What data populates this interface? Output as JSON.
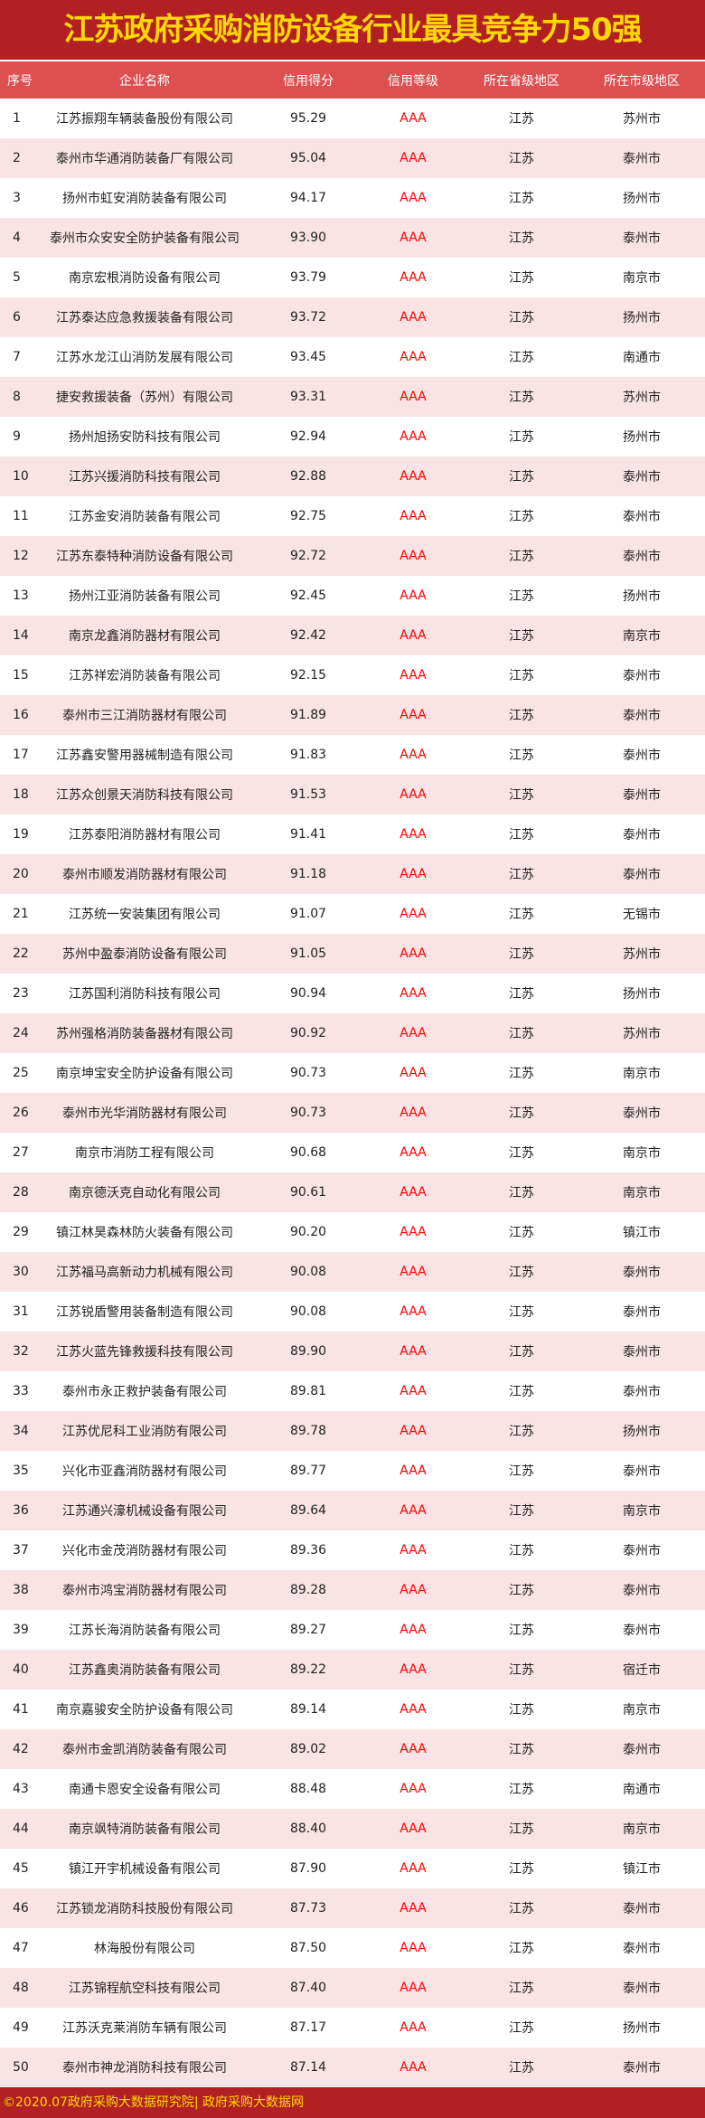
{
  "title": "江苏政府采购消防设备行业最具竞争力50强",
  "headers": [
    "序号",
    "企业名称",
    "信用得分",
    "信用等级",
    "所在省级地区",
    "所在市级地区"
  ],
  "rows": [
    [
      "1",
      "江苏振翔车辆装备股份有限公司",
      "95.29",
      "AAA",
      "江苏",
      "苏州市"
    ],
    [
      "2",
      "泰州市华通消防装备厂有限公司",
      "95.04",
      "AAA",
      "江苏",
      "泰州市"
    ],
    [
      "3",
      "扬州市虹安消防装备有限公司",
      "94.17",
      "AAA",
      "江苏",
      "扬州市"
    ],
    [
      "4",
      "泰州市众安安全防护装备有限公司",
      "93.90",
      "AAA",
      "江苏",
      "泰州市"
    ],
    [
      "5",
      "南京宏根消防设备有限公司",
      "93.79",
      "AAA",
      "江苏",
      "南京市"
    ],
    [
      "6",
      "江苏泰达应急救援装备有限公司",
      "93.72",
      "AAA",
      "江苏",
      "扬州市"
    ],
    [
      "7",
      "江苏水龙江山消防发展有限公司",
      "93.45",
      "AAA",
      "江苏",
      "南通市"
    ],
    [
      "8",
      "捷安救援装备（苏州）有限公司",
      "93.31",
      "AAA",
      "江苏",
      "苏州市"
    ],
    [
      "9",
      "扬州旭扬安防科技有限公司",
      "92.94",
      "AAA",
      "江苏",
      "扬州市"
    ],
    [
      "10",
      "江苏兴援消防科技有限公司",
      "92.88",
      "AAA",
      "江苏",
      "泰州市"
    ],
    [
      "11",
      "江苏金安消防装备有限公司",
      "92.75",
      "AAA",
      "江苏",
      "泰州市"
    ],
    [
      "12",
      "江苏东泰特种消防设备有限公司",
      "92.72",
      "AAA",
      "江苏",
      "泰州市"
    ],
    [
      "13",
      "扬州江亚消防装备有限公司",
      "92.45",
      "AAA",
      "江苏",
      "扬州市"
    ],
    [
      "14",
      "南京龙鑫消防器材有限公司",
      "92.42",
      "AAA",
      "江苏",
      "南京市"
    ],
    [
      "15",
      "江苏祥宏消防装备有限公司",
      "92.15",
      "AAA",
      "江苏",
      "泰州市"
    ],
    [
      "16",
      "泰州市三江消防器材有限公司",
      "91.89",
      "AAA",
      "江苏",
      "泰州市"
    ],
    [
      "17",
      "江苏鑫安警用器械制造有限公司",
      "91.83",
      "AAA",
      "江苏",
      "泰州市"
    ],
    [
      "18",
      "江苏众创景天消防科技有限公司",
      "91.53",
      "AAA",
      "江苏",
      "泰州市"
    ],
    [
      "19",
      "江苏泰阳消防器材有限公司",
      "91.41",
      "AAA",
      "江苏",
      "泰州市"
    ],
    [
      "20",
      "泰州市顺发消防器材有限公司",
      "91.18",
      "AAA",
      "江苏",
      "泰州市"
    ],
    [
      "21",
      "江苏统一安装集团有限公司",
      "91.07",
      "AAA",
      "江苏",
      "无锡市"
    ],
    [
      "22",
      "苏州中盈泰消防设备有限公司",
      "91.05",
      "AAA",
      "江苏",
      "苏州市"
    ],
    [
      "23",
      "江苏国利消防科技有限公司",
      "90.94",
      "AAA",
      "江苏",
      "扬州市"
    ],
    [
      "24",
      "苏州强格消防装备器材有限公司",
      "90.92",
      "AAA",
      "江苏",
      "苏州市"
    ],
    [
      "25",
      "南京坤宝安全防护设备有限公司",
      "90.73",
      "AAA",
      "江苏",
      "南京市"
    ],
    [
      "26",
      "泰州市光华消防器材有限公司",
      "90.73",
      "AAA",
      "江苏",
      "泰州市"
    ],
    [
      "27",
      "南京市消防工程有限公司",
      "90.68",
      "AAA",
      "江苏",
      "南京市"
    ],
    [
      "28",
      "南京德沃克自动化有限公司",
      "90.61",
      "AAA",
      "江苏",
      "南京市"
    ],
    [
      "29",
      "镇江林昊森林防火装备有限公司",
      "90.20",
      "AAA",
      "江苏",
      "镇江市"
    ],
    [
      "30",
      "江苏福马高新动力机械有限公司",
      "90.08",
      "AAA",
      "江苏",
      "泰州市"
    ],
    [
      "31",
      "江苏锐盾警用装备制造有限公司",
      "90.08",
      "AAA",
      "江苏",
      "泰州市"
    ],
    [
      "32",
      "江苏火蓝先锋救援科技有限公司",
      "89.90",
      "AAA",
      "江苏",
      "泰州市"
    ],
    [
      "33",
      "泰州市永正救护装备有限公司",
      "89.81",
      "AAA",
      "江苏",
      "泰州市"
    ],
    [
      "34",
      "江苏优尼科工业消防有限公司",
      "89.78",
      "AAA",
      "江苏",
      "扬州市"
    ],
    [
      "35",
      "兴化市亚鑫消防器材有限公司",
      "89.77",
      "AAA",
      "江苏",
      "泰州市"
    ],
    [
      "36",
      "江苏通兴濠机械设备有限公司",
      "89.64",
      "AAA",
      "江苏",
      "南京市"
    ],
    [
      "37",
      "兴化市金茂消防器材有限公司",
      "89.36",
      "AAA",
      "江苏",
      "泰州市"
    ],
    [
      "38",
      "泰州市鸿宝消防器材有限公司",
      "89.28",
      "AAA",
      "江苏",
      "泰州市"
    ],
    [
      "39",
      "江苏长海消防装备有限公司",
      "89.27",
      "AAA",
      "江苏",
      "泰州市"
    ],
    [
      "40",
      "江苏鑫奥消防装备有限公司",
      "89.22",
      "AAA",
      "江苏",
      "宿迁市"
    ],
    [
      "41",
      "南京嘉骏安全防护设备有限公司",
      "89.14",
      "AAA",
      "江苏",
      "南京市"
    ],
    [
      "42",
      "泰州市金凯消防装备有限公司",
      "89.02",
      "AAA",
      "江苏",
      "泰州市"
    ],
    [
      "43",
      "南通卡恩安全设备有限公司",
      "88.48",
      "AAA",
      "江苏",
      "南通市"
    ],
    [
      "44",
      "南京飒特消防装备有限公司",
      "88.40",
      "AAA",
      "江苏",
      "南京市"
    ],
    [
      "45",
      "镇江开宇机械设备有限公司",
      "87.90",
      "AAA",
      "江苏",
      "镇江市"
    ],
    [
      "46",
      "江苏锁龙消防科技股份有限公司",
      "87.73",
      "AAA",
      "江苏",
      "泰州市"
    ],
    [
      "47",
      "林海股份有限公司",
      "87.50",
      "AAA",
      "江苏",
      "泰州市"
    ],
    [
      "48",
      "江苏锦程航空科技有限公司",
      "87.40",
      "AAA",
      "江苏",
      "泰州市"
    ],
    [
      "49",
      "江苏沃克莱消防车辆有限公司",
      "87.17",
      "AAA",
      "江苏",
      "扬州市"
    ],
    [
      "50",
      "泰州市神龙消防科技有限公司",
      "87.14",
      "AAA",
      "江苏",
      "泰州市"
    ]
  ],
  "footer": "©2020.07政府采购大数据研究院| 政府采购大数据网",
  "colors": {
    "title_bg": "#b32024",
    "title_text": "#ffd800",
    "header_bg": "#de5050",
    "stripe": "#f9e3e4",
    "grade": "#ff0000"
  }
}
